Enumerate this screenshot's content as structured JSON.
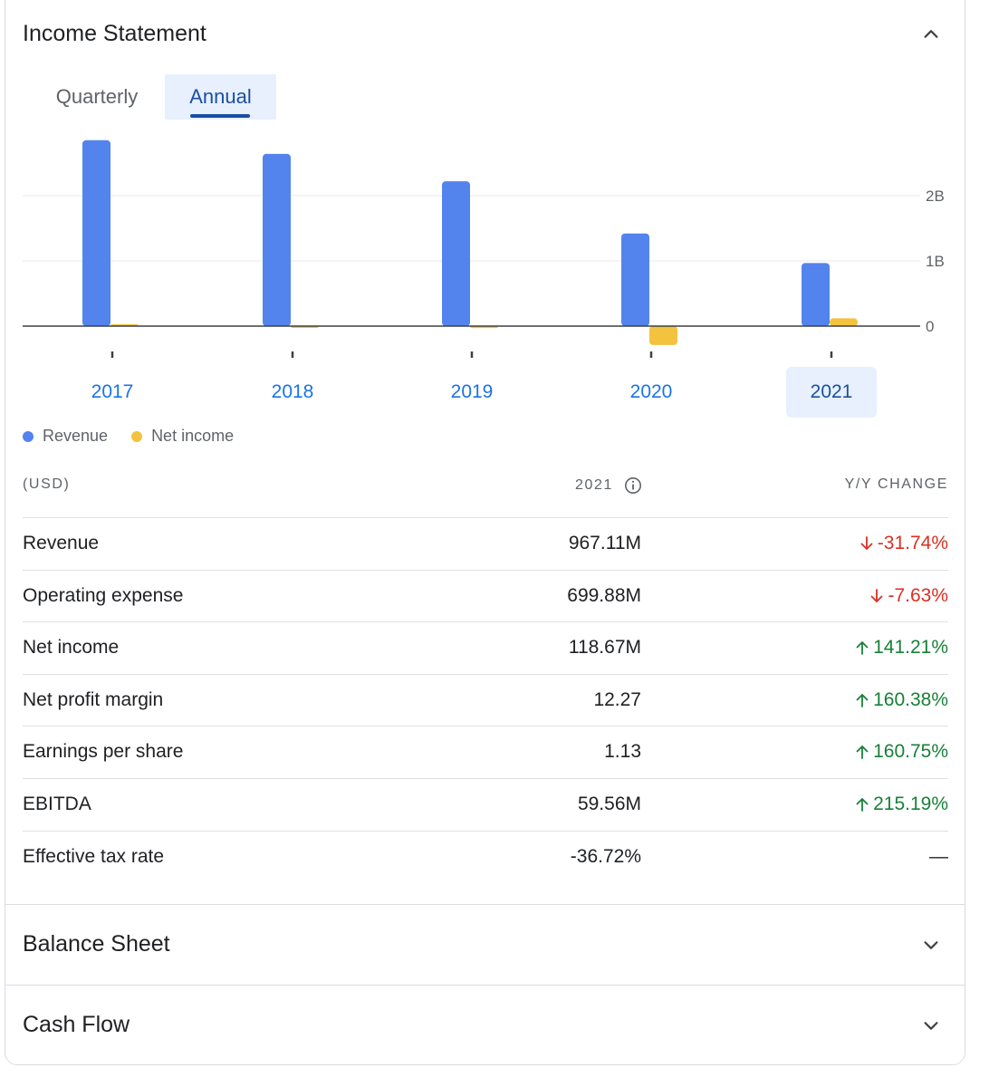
{
  "income_statement": {
    "title": "Income Statement",
    "tabs": [
      {
        "label": "Quarterly",
        "selected": false
      },
      {
        "label": "Annual",
        "selected": true
      }
    ]
  },
  "chart_data": {
    "type": "bar",
    "categories": [
      "2017",
      "2018",
      "2019",
      "2020",
      "2021"
    ],
    "series": [
      {
        "name": "Revenue",
        "values": [
          2.85,
          2.64,
          2.22,
          1.42,
          0.967
        ],
        "color": "#5384ed"
      },
      {
        "name": "Net income",
        "values": [
          0.03,
          -0.02,
          -0.03,
          -0.29,
          0.119
        ],
        "color": "#f3c23e"
      }
    ],
    "y_ticks": [
      {
        "value": 0,
        "label": "0"
      },
      {
        "value": 1,
        "label": "1B"
      },
      {
        "value": 2,
        "label": "2B"
      }
    ],
    "selected_category": "2021",
    "grid": true,
    "legend": "bottom-left"
  },
  "table": {
    "headers": {
      "metric": "(USD)",
      "year": "2021",
      "change": "Y/Y CHANGE"
    },
    "rows": [
      {
        "label": "Revenue",
        "value": "967.11M",
        "change": "-31.74%",
        "direction": "down"
      },
      {
        "label": "Operating expense",
        "value": "699.88M",
        "change": "-7.63%",
        "direction": "down"
      },
      {
        "label": "Net income",
        "value": "118.67M",
        "change": "141.21%",
        "direction": "up"
      },
      {
        "label": "Net profit margin",
        "value": "12.27",
        "change": "160.38%",
        "direction": "up"
      },
      {
        "label": "Earnings per share",
        "value": "1.13",
        "change": "160.75%",
        "direction": "up"
      },
      {
        "label": "EBITDA",
        "value": "59.56M",
        "change": "215.19%",
        "direction": "up"
      },
      {
        "label": "Effective tax rate",
        "value": "-36.72%",
        "change": "—",
        "direction": "none"
      }
    ]
  },
  "collapsed_sections": [
    {
      "title": "Balance Sheet"
    },
    {
      "title": "Cash Flow"
    }
  ]
}
